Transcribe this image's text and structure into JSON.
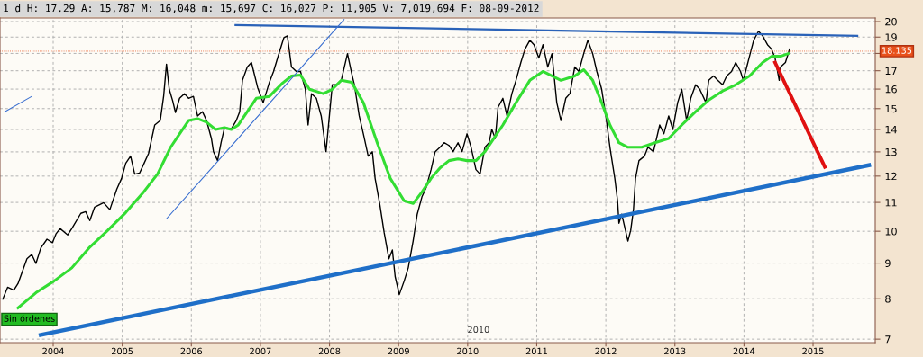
{
  "chart_data": {
    "type": "line",
    "title": "1 d H: 17.29 A: 15,787 M: 16,048 m: 15,697 C: 16,027 P: 11,905 V: 7,019,694 F: 08-09-2012",
    "log": "y",
    "grid": true,
    "legend": false,
    "xlim": [
      2003.23,
      2015.9
    ],
    "ylim": [
      6.92,
      20.24
    ],
    "xticks": [
      2004,
      2005,
      2006,
      2007,
      2008,
      2009,
      2010,
      2011,
      2012,
      2013,
      2014,
      2015
    ],
    "yticks": [
      7,
      8,
      9,
      10,
      11,
      12,
      13,
      14,
      15,
      16,
      17,
      {
        "value": 18,
        "label": null
      },
      19,
      20
    ],
    "ref_lines": [
      {
        "axis": "y",
        "value": 18.135,
        "label": "18.135",
        "color": "#e8501a"
      }
    ],
    "annotations": [
      "Sin órdenes",
      "2010"
    ],
    "series": [
      {
        "color": "#000000",
        "x": [
          2003.27,
          2003.34,
          2003.43,
          2003.49,
          2003.62,
          2003.69,
          2003.75,
          2003.82,
          2003.91,
          2003.99,
          2004.04,
          2004.1,
          2004.21,
          2004.27,
          2004.4,
          2004.47,
          2004.53,
          2004.6,
          2004.73,
          2004.82,
          2004.92,
          2004.99,
          2005.05,
          2005.12,
          2005.18,
          2005.25,
          2005.31,
          2005.38,
          2005.47,
          2005.55,
          2005.6,
          2005.64,
          2005.68,
          2005.73,
          2005.77,
          2005.83,
          2005.9,
          2005.96,
          2006.03,
          2006.09,
          2006.16,
          2006.22,
          2006.29,
          2006.32,
          2006.38,
          2006.43,
          2006.48,
          2006.58,
          2006.65,
          2006.7,
          2006.74,
          2006.81,
          2006.87,
          2006.96,
          2007.04,
          2007.13,
          2007.19,
          2007.26,
          2007.34,
          2007.39,
          2007.45,
          2007.52,
          2007.58,
          2007.65,
          2007.69,
          2007.74,
          2007.81,
          2007.88,
          2007.95,
          2008.04,
          2008.1,
          2008.17,
          2008.26,
          2008.32,
          2008.36,
          2008.43,
          2008.49,
          2008.56,
          2008.62,
          2008.66,
          2008.73,
          2008.79,
          2008.86,
          2008.91,
          2008.95,
          2009.01,
          2009.08,
          2009.14,
          2009.21,
          2009.27,
          2009.34,
          2009.4,
          2009.47,
          2009.53,
          2009.6,
          2009.66,
          2009.73,
          2009.79,
          2009.86,
          2009.92,
          2009.99,
          2010.05,
          2010.12,
          2010.18,
          2010.25,
          2010.31,
          2010.35,
          2010.4,
          2010.44,
          2010.51,
          2010.57,
          2010.64,
          2010.7,
          2010.77,
          2010.83,
          2010.9,
          2010.96,
          2011.03,
          2011.09,
          2011.16,
          2011.22,
          2011.29,
          2011.35,
          2011.42,
          2011.48,
          2011.55,
          2011.61,
          2011.68,
          2011.74,
          2011.81,
          2011.87,
          2011.94,
          2012.0,
          2012.06,
          2012.13,
          2012.17,
          2012.19,
          2012.23,
          2012.29,
          2012.32,
          2012.36,
          2012.4,
          2012.43,
          2012.48,
          2012.56,
          2012.61,
          2012.69,
          2012.78,
          2012.84,
          2012.91,
          2012.97,
          2013.04,
          2013.1,
          2013.17,
          2013.23,
          2013.3,
          2013.36,
          2013.45,
          2013.49,
          2013.56,
          2013.62,
          2013.69,
          2013.75,
          2013.82,
          2013.88,
          2013.95,
          2013.99,
          2014.04,
          2014.09,
          2014.14,
          2014.21,
          2014.27,
          2014.34,
          2014.4,
          2014.45,
          2014.51,
          2014.53,
          2014.6,
          2014.66
        ],
        "values": [
          7.99,
          8.31,
          8.23,
          8.41,
          9.13,
          9.26,
          8.99,
          9.46,
          9.74,
          9.63,
          9.91,
          10.09,
          9.88,
          10.09,
          10.61,
          10.67,
          10.36,
          10.83,
          10.99,
          10.74,
          11.49,
          11.91,
          12.52,
          12.82,
          12.08,
          12.12,
          12.48,
          12.93,
          14.21,
          14.42,
          15.66,
          17.37,
          15.99,
          15.39,
          14.81,
          15.52,
          15.76,
          15.52,
          15.62,
          14.64,
          14.85,
          14.42,
          13.59,
          13.01,
          12.63,
          13.4,
          14.08,
          14.04,
          14.42,
          14.85,
          16.47,
          17.21,
          17.47,
          16.08,
          15.3,
          16.37,
          16.96,
          17.89,
          18.97,
          19.08,
          17.21,
          16.96,
          16.96,
          15.99,
          14.21,
          15.76,
          15.52,
          14.64,
          13.01,
          16.23,
          16.23,
          16.47,
          17.99,
          16.86,
          16.23,
          14.64,
          13.8,
          12.82,
          13.01,
          11.91,
          10.9,
          9.97,
          9.13,
          9.4,
          8.61,
          8.11,
          8.48,
          8.86,
          9.68,
          10.58,
          11.22,
          11.56,
          12.26,
          13.01,
          13.2,
          13.4,
          13.28,
          13.01,
          13.4,
          13.01,
          13.8,
          13.2,
          12.26,
          12.08,
          13.2,
          13.4,
          14.0,
          13.59,
          15.07,
          15.52,
          14.64,
          15.76,
          16.47,
          17.47,
          18.26,
          18.8,
          18.53,
          17.73,
          18.53,
          17.21,
          17.99,
          15.3,
          14.42,
          15.52,
          15.76,
          17.21,
          16.96,
          17.99,
          18.8,
          17.99,
          16.96,
          15.99,
          14.64,
          13.2,
          11.91,
          11.06,
          10.27,
          10.58,
          9.97,
          9.68,
          10.03,
          10.74,
          11.91,
          12.63,
          12.82,
          13.2,
          13.01,
          14.21,
          13.8,
          14.64,
          14.0,
          15.3,
          15.99,
          14.42,
          15.52,
          16.23,
          15.99,
          15.3,
          16.47,
          16.71,
          16.47,
          16.23,
          16.71,
          16.96,
          17.47,
          16.96,
          16.47,
          17.21,
          17.99,
          18.8,
          19.37,
          19.08,
          18.53,
          18.26,
          17.73,
          16.47,
          17.21,
          17.47,
          18.26
        ]
      },
      {
        "color": "#33dd33",
        "x": [
          2003.49,
          2003.75,
          2004.01,
          2004.27,
          2004.53,
          2004.79,
          2005.05,
          2005.31,
          2005.51,
          2005.7,
          2005.83,
          2005.96,
          2006.09,
          2006.22,
          2006.35,
          2006.48,
          2006.58,
          2006.68,
          2006.81,
          2006.94,
          2007.13,
          2007.32,
          2007.45,
          2007.58,
          2007.71,
          2007.91,
          2008.04,
          2008.17,
          2008.32,
          2008.49,
          2008.69,
          2008.88,
          2009.08,
          2009.21,
          2009.34,
          2009.47,
          2009.6,
          2009.73,
          2009.86,
          2009.99,
          2010.12,
          2010.25,
          2010.38,
          2010.51,
          2010.7,
          2010.9,
          2011.09,
          2011.22,
          2011.35,
          2011.55,
          2011.68,
          2011.81,
          2011.94,
          2012.06,
          2012.19,
          2012.32,
          2012.52,
          2012.71,
          2012.91,
          2013.1,
          2013.3,
          2013.49,
          2013.69,
          2013.88,
          2014.08,
          2014.27,
          2014.4,
          2014.53,
          2014.64
        ],
        "values": [
          7.76,
          8.16,
          8.48,
          8.86,
          9.49,
          10.03,
          10.64,
          11.39,
          12.08,
          13.2,
          13.8,
          14.42,
          14.51,
          14.34,
          14.0,
          14.08,
          14.0,
          14.21,
          14.85,
          15.52,
          15.62,
          16.32,
          16.71,
          16.76,
          15.99,
          15.76,
          15.99,
          16.47,
          16.37,
          15.3,
          13.4,
          11.91,
          11.06,
          10.96,
          11.39,
          11.91,
          12.33,
          12.63,
          12.7,
          12.63,
          12.63,
          13.01,
          13.59,
          14.21,
          15.3,
          16.47,
          16.96,
          16.71,
          16.47,
          16.71,
          17.06,
          16.47,
          15.3,
          14.21,
          13.4,
          13.2,
          13.2,
          13.4,
          13.59,
          14.21,
          14.85,
          15.43,
          15.9,
          16.23,
          16.71,
          17.47,
          17.83,
          17.83,
          17.99
        ]
      },
      {
        "color": "#1f6fc8",
        "x": [
          2003.82,
          2015.81
        ],
        "values": [
          7.1,
          12.44
        ]
      },
      {
        "color": "#2a62b8",
        "x": [
          2006.64,
          2015.64
        ],
        "values": [
          19.77,
          19.08
        ]
      },
      {
        "color": "#3a6fd0",
        "x": [
          2003.3,
          2003.69
        ],
        "values": [
          14.85,
          15.62
        ]
      },
      {
        "color": "#3a6fd0",
        "x": [
          2005.64,
          2008.21
        ],
        "values": [
          10.42,
          20.13
        ]
      },
      {
        "color": "#e01010",
        "x": [
          2014.45,
          2015.17
        ],
        "values": [
          17.47,
          12.37
        ]
      }
    ]
  }
}
